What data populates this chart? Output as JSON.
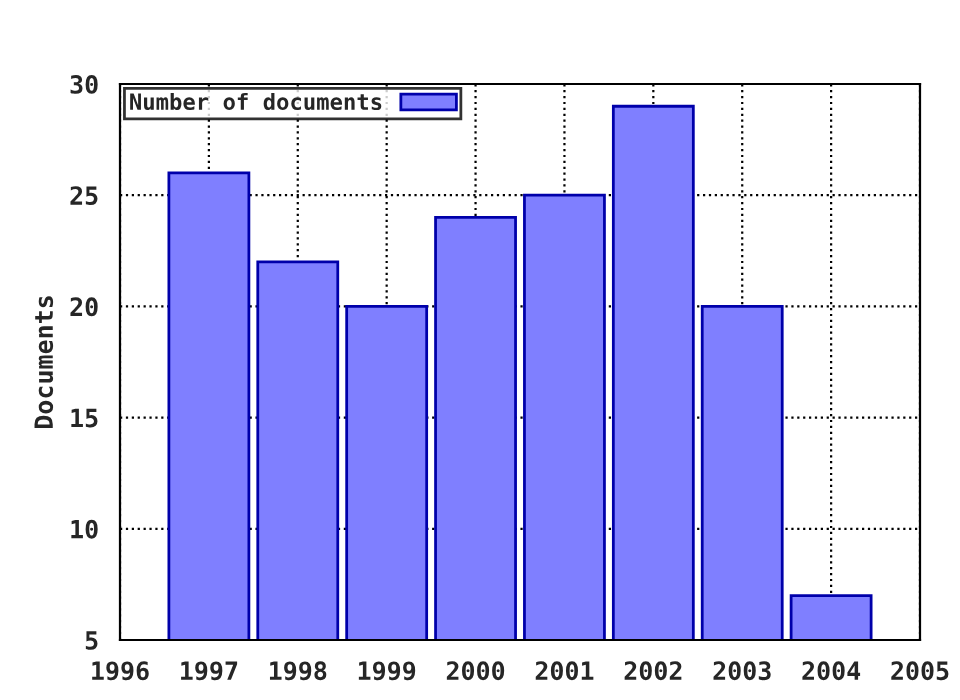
{
  "chart_data": {
    "type": "bar",
    "ylabel": "Documents",
    "x": [
      1997,
      1998,
      1999,
      2000,
      2001,
      2002,
      2003,
      2004
    ],
    "series": [
      {
        "name": "Number of documents",
        "color": "#7f7fff",
        "values": [
          26,
          22,
          20,
          24,
          25,
          29,
          20,
          7
        ]
      }
    ],
    "xlim": [
      1996,
      2005
    ],
    "xticks": [
      1996,
      1997,
      1998,
      1999,
      2000,
      2001,
      2002,
      2003,
      2004,
      2005
    ],
    "ylim": [
      5,
      30
    ],
    "yticks": [
      5,
      10,
      15,
      20,
      25,
      30
    ],
    "grid": true,
    "legend": "top left"
  }
}
